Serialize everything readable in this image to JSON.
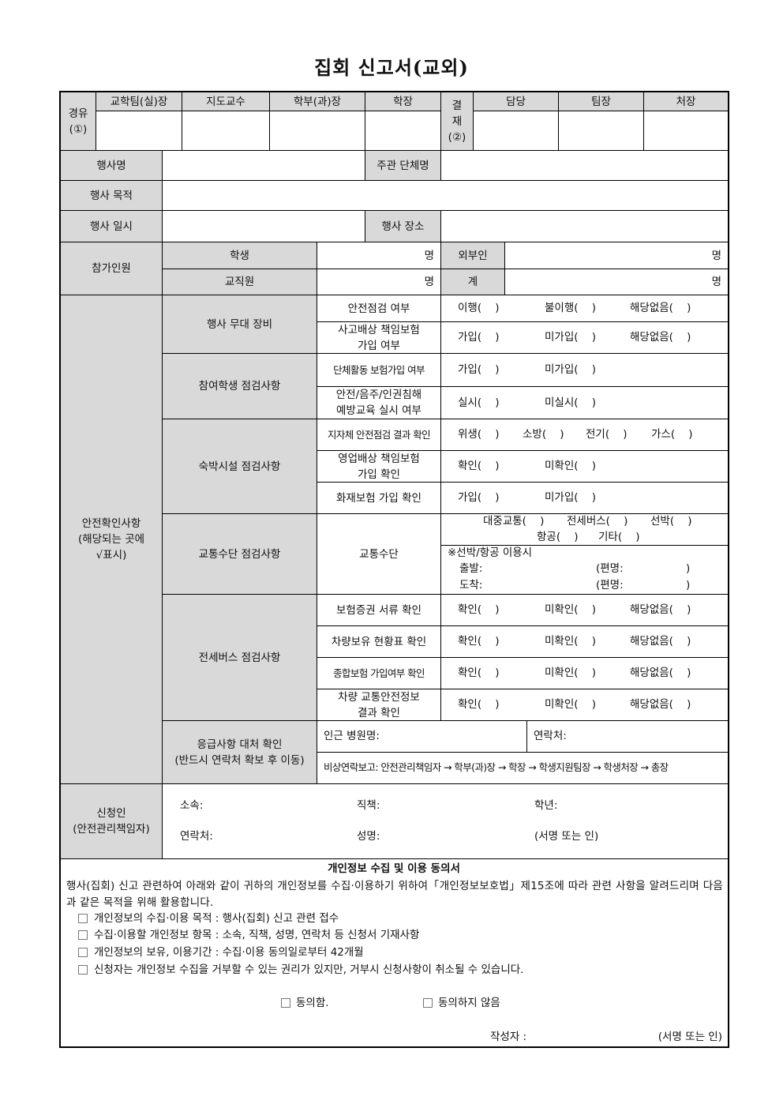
{
  "title": "집회 신고서(교외)",
  "approval": {
    "via_label": "경유\n(①)",
    "via_cols": [
      "교학팀(실)장",
      "지도교수",
      "학부(과)장",
      "학장"
    ],
    "sign_label": "결\n재\n(②)",
    "sign_cols": [
      "담당",
      "팀장",
      "처장"
    ]
  },
  "event": {
    "name_label": "행사명",
    "host_label": "주관 단체명",
    "purpose_label": "행사 목적",
    "datetime_label": "행사 일시",
    "place_label": "행사 장소"
  },
  "participants": {
    "label": "참가인원",
    "student_label": "학생",
    "staff_label": "교직원",
    "outsider_label": "외부인",
    "total_label": "계",
    "unit": "명"
  },
  "safety": {
    "label": "안전확인사항\n(해당되는 곳에\n√표시)",
    "groups": [
      {
        "label": "행사 무대 장비",
        "items": [
          {
            "label": "안전점검 여부",
            "options": [
              "이행(    )",
              "불이행(    )",
              "해당없음(    )"
            ]
          },
          {
            "label": "사고배상 책임보험\n가입 여부",
            "options": [
              "가입(    )",
              "미가입(    )",
              "해당없음(    )"
            ]
          }
        ]
      },
      {
        "label": "참여학생 점검사항",
        "items": [
          {
            "label": "단체활동 보험가입 여부",
            "options": [
              "가입(    )",
              "미가입(    )"
            ]
          },
          {
            "label": "안전/음주/인권침해\n예방교육 실시 여부",
            "options": [
              "실시(    )",
              "미실시(    )"
            ]
          }
        ]
      },
      {
        "label": "숙박시설 점검사항",
        "items": [
          {
            "label": "지자체 안전점검 결과 확인",
            "options": [
              "위생(    )",
              "소방(    )",
              "전기(    )",
              "가스(    )"
            ]
          },
          {
            "label": "영업배상 책임보험\n가입 확인",
            "options": [
              "확인(    )",
              "미확인(    )"
            ]
          },
          {
            "label": "화재보험 가입 확인",
            "options": [
              "가입(    )",
              "미가입(    )"
            ]
          }
        ]
      },
      {
        "label": "교통수단 점검사항",
        "items": [
          {
            "label": "교통수단",
            "options": [
              "대중교통(    )",
              "전세버스(    )",
              "선박(    )",
              "항공(    )",
              "기타(    )"
            ],
            "note": "※선박/항공 이용시",
            "departure": "출발:",
            "arrival": "도착:",
            "flight": "(편명:",
            "close": ")"
          }
        ]
      },
      {
        "label": "전세버스 점검사항",
        "items": [
          {
            "label": "보험증권 서류 확인",
            "options": [
              "확인(    )",
              "미확인(    )",
              "해당없음(    )"
            ]
          },
          {
            "label": "차량보유 현황표 확인",
            "options": [
              "확인(    )",
              "미확인(    )",
              "해당없음(    )"
            ]
          },
          {
            "label": "종합보험 가입여부 확인",
            "options": [
              "확인(    )",
              "미확인(    )",
              "해당없음(    )"
            ]
          },
          {
            "label": "차량 교통안전정보\n결과 확인",
            "options": [
              "확인(    )",
              "미확인(    )",
              "해당없음(    )"
            ]
          }
        ]
      },
      {
        "label": "응급사항 대처 확인\n(반드시 연락처 확보 후 이동)",
        "hospital": "인근 병원명:",
        "contact": "연락처:",
        "report": "비상연락보고: 안전관리책임자 → 학부(과)장 → 학장 → 학생지원팀장 → 학생처장 → 총장"
      }
    ]
  },
  "applicant": {
    "label": "신청인\n(안전관리책임자)",
    "affiliation": "소속:",
    "position": "직책:",
    "grade": "학년:",
    "contact": "연락처:",
    "name": "성명:",
    "signature": "(서명 또는 인)"
  },
  "privacy": {
    "title": "개인정보 수집 및 이용 동의서",
    "intro": "행사(집회) 신고 관련하여 아래와 같이 귀하의 개인정보를 수집·이용하기 위하여「개인정보보호법」제15조에 따라 관련 사항을 알려드리며 다음과 같은 목적을 위해 활용합니다.",
    "items": [
      "개인정보의 수집·이용 목적 : 행사(집회) 신고 관련 접수",
      "수집·이용할 개인정보 항목 : 소속, 직책, 성명, 연락처 등 신청서 기재사항",
      "개인정보의 보유, 이용기간 : 수집·이용 동의일로부터 42개월",
      "신청자는 개인정보 수집을 거부할 수 있는 권리가 있지만, 거부시 신청사항이 취소될 수 있습니다."
    ],
    "agree": "동의함.",
    "disagree": "동의하지 않음",
    "writer": "작성자 :",
    "signature": "(서명 또는 인)"
  }
}
